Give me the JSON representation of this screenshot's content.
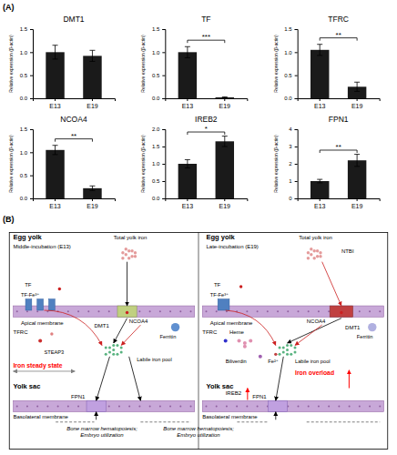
{
  "chart_data": [
    {
      "type": "bar",
      "title": "DMT1",
      "categories": [
        "E13",
        "E19"
      ],
      "values": [
        1.0,
        0.92
      ],
      "errors": [
        0.15,
        0.12
      ],
      "color": "#1a1a1a",
      "y_label": "Relative expression (β-actin)",
      "ylim": [
        0,
        1.5
      ],
      "yticks": [
        {
          "value": 0,
          "label": "0.0"
        },
        0.5,
        {
          "value": 1,
          "label": "1.0"
        },
        1.5
      ]
    },
    {
      "type": "bar",
      "title": "TF",
      "categories": [
        "E13",
        "E19"
      ],
      "values": [
        1.0,
        0.02
      ],
      "errors": [
        0.12,
        0.01
      ],
      "color": "#1a1a1a",
      "y_label": "Relative expression (β-actin)",
      "ylim": [
        0,
        1.5
      ],
      "yticks": [
        {
          "value": 0,
          "label": "0.0"
        },
        0.5,
        {
          "value": 1,
          "label": "1.0"
        },
        1.5
      ],
      "annotations": [
        "***"
      ]
    },
    {
      "type": "bar",
      "title": "TFRC",
      "categories": [
        "E13",
        "E19"
      ],
      "values": [
        1.05,
        0.25
      ],
      "errors": [
        0.12,
        0.1
      ],
      "color": "#1a1a1a",
      "y_label": "Relative expression (β-actin)",
      "ylim": [
        0,
        1.5
      ],
      "yticks": [
        {
          "value": 0,
          "label": "0.0"
        },
        0.5,
        {
          "value": 1,
          "label": "1.0"
        },
        1.5
      ],
      "annotations": [
        "**"
      ]
    },
    {
      "type": "bar",
      "title": "NCOA4",
      "categories": [
        "E13",
        "E19"
      ],
      "values": [
        1.05,
        0.22
      ],
      "errors": [
        0.1,
        0.05
      ],
      "color": "#1a1a1a",
      "y_label": "Relative expression (β-actin)",
      "ylim": [
        0,
        1.5
      ],
      "yticks": [
        {
          "value": 0,
          "label": "0.0"
        },
        0.5,
        {
          "value": 1,
          "label": "1.0"
        },
        1.5
      ],
      "annotations": [
        "**"
      ]
    },
    {
      "type": "bar",
      "title": "IREB2",
      "categories": [
        "E13",
        "E19"
      ],
      "values": [
        1.0,
        1.65
      ],
      "errors": [
        0.12,
        0.15
      ],
      "color": "#1a1a1a",
      "y_label": "Relative expression (β-actin)",
      "ylim": [
        0,
        2.0
      ],
      "yticks": [
        {
          "value": 0,
          "label": "0.0"
        },
        0.5,
        {
          "value": 1,
          "label": "1.0"
        },
        1.5,
        {
          "value": 2,
          "label": "2.0"
        }
      ],
      "annotations": [
        "*"
      ]
    },
    {
      "type": "bar",
      "title": "FPN1",
      "categories": [
        "E13",
        "E19"
      ],
      "values": [
        1.0,
        2.2
      ],
      "errors": [
        0.1,
        0.35
      ],
      "color": "#1a1a1a",
      "y_label": "Relative expression (β-actin)",
      "ylim": [
        0,
        4
      ],
      "yticks": [
        0,
        1,
        2,
        3,
        4
      ],
      "annotations": [
        "**"
      ]
    },
    {
      "type": "diagram",
      "annotations": [
        "(A)",
        "(B)",
        "Egg yolk",
        "Middle-incubation (E13)",
        "Total yolk iron",
        "TF",
        "TF-Fe³⁺",
        "Apical membrane",
        "DMT1",
        "NCOA4",
        "Ferritin",
        "TFRC",
        "STEAP3",
        "Labile iron pool",
        "Iron steady state",
        "Yolk sac",
        "FPN1",
        "Basolateral membrane",
        "Bone marrow hematopoiesis;\nEmbryo utilization",
        "Egg yolk",
        "Late-incubation (E19)",
        "Total yolk iron",
        "NTBI",
        "TF",
        "TF-Fe³⁺",
        "Apical membrane",
        "DMT1",
        "NCOA4",
        "Ferritin",
        "TFRC",
        "Heme",
        "Biliverdin",
        "Fe²⁺",
        "Labile iron pool",
        "Iron overload",
        "IREB2",
        "FPN1",
        "Yolk sac",
        "Basolateral membrane",
        "Bone marrow hematopoiesis;\nEmbryo utilization"
      ]
    }
  ]
}
